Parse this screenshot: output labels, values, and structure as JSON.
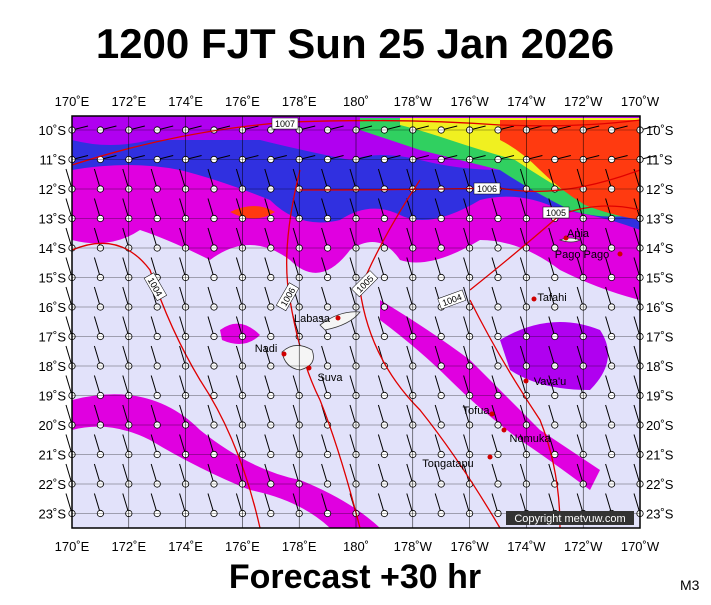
{
  "title": "1200 FJT Sun 25 Jan 2026",
  "footer": "Forecast +30 hr",
  "model": "M3",
  "copyright": "Copyright metvuw.com",
  "lon_labels": [
    "170˚E",
    "172˚E",
    "174˚E",
    "176˚E",
    "178˚E",
    "180˚",
    "178˚W",
    "176˚W",
    "174˚W",
    "172˚W",
    "170˚W"
  ],
  "lat_labels": [
    "10˚S",
    "11˚S",
    "12˚S",
    "13˚S",
    "14˚S",
    "15˚S",
    "16˚S",
    "17˚S",
    "18˚S",
    "19˚S",
    "20˚S",
    "21˚S",
    "22˚S",
    "23˚S"
  ],
  "places": [
    "Apia",
    "Pago Pago",
    "Tafahi",
    "Labasa",
    "Nadi",
    "Suva",
    "Vava'u",
    "Tofua",
    "Nomuka",
    "Tongatapu"
  ],
  "isobar_labels": [
    "1007",
    "1006",
    "1005",
    "1004",
    "1006",
    "1005",
    "1004"
  ]
}
